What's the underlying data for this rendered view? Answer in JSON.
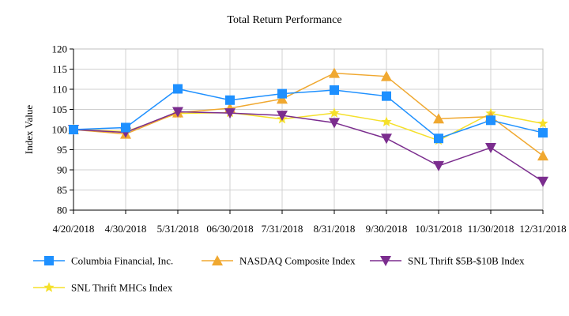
{
  "chart_data": {
    "type": "line",
    "title": "Total Return Performance",
    "xlabel": "",
    "ylabel": "Index Value",
    "ylim": [
      80,
      120
    ],
    "yticks": [
      80,
      85,
      90,
      95,
      100,
      105,
      110,
      115,
      120
    ],
    "grid": true,
    "legend_position": "bottom",
    "categories": [
      "4/20/2018",
      "4/30/2018",
      "5/31/2018",
      "06/30/2018",
      "7/31/2018",
      "8/31/2018",
      "9/30/2018",
      "10/31/2018",
      "11/30/2018",
      "12/31/2018"
    ],
    "series": [
      {
        "name": "Columbia Financial, Inc.",
        "color": "#1e90ff",
        "marker": "square",
        "values": [
          100.0,
          100.5,
          110.1,
          107.3,
          108.9,
          109.8,
          108.3,
          97.8,
          102.3,
          99.2
        ]
      },
      {
        "name": "NASDAQ Composite Index",
        "color": "#f0a830",
        "marker": "triangle-up",
        "values": [
          100.0,
          98.9,
          104.2,
          105.3,
          107.6,
          114.0,
          113.2,
          102.7,
          103.2,
          93.5
        ]
      },
      {
        "name": "SNL Thrift $5B-$10B Index",
        "color": "#7b2d8e",
        "marker": "triangle-down",
        "values": [
          100.0,
          99.3,
          104.4,
          104.1,
          103.5,
          101.7,
          97.8,
          91.0,
          95.5,
          87.1
        ]
      },
      {
        "name": "SNL Thrift MHCs Index",
        "color": "#f5e02a",
        "marker": "star",
        "values": [
          100.0,
          99.5,
          104.0,
          104.2,
          102.6,
          104.1,
          101.9,
          97.3,
          104.0,
          101.5
        ]
      }
    ]
  }
}
